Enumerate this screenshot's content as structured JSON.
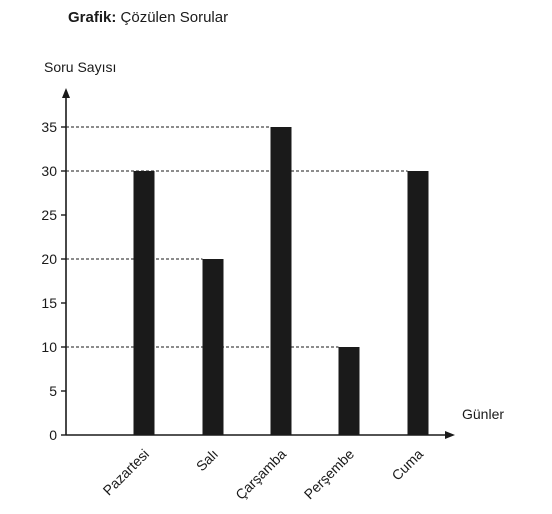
{
  "chart_data": {
    "type": "bar",
    "title_prefix": "Grafik:",
    "title": "Çözülen Sorular",
    "xlabel": "Günler",
    "ylabel": "Soru Sayısı",
    "categories": [
      "Pazartesi",
      "Salı",
      "Çarşamba",
      "Perşembe",
      "Cuma"
    ],
    "values": [
      30,
      20,
      35,
      10,
      30
    ],
    "yticks": [
      0,
      5,
      10,
      15,
      20,
      25,
      30,
      35
    ],
    "ylim": [
      0,
      35
    ],
    "bar_color": "#1a1a1a",
    "axis_color": "#1a1a1a",
    "guide_lines": "dashed",
    "grid": false
  }
}
